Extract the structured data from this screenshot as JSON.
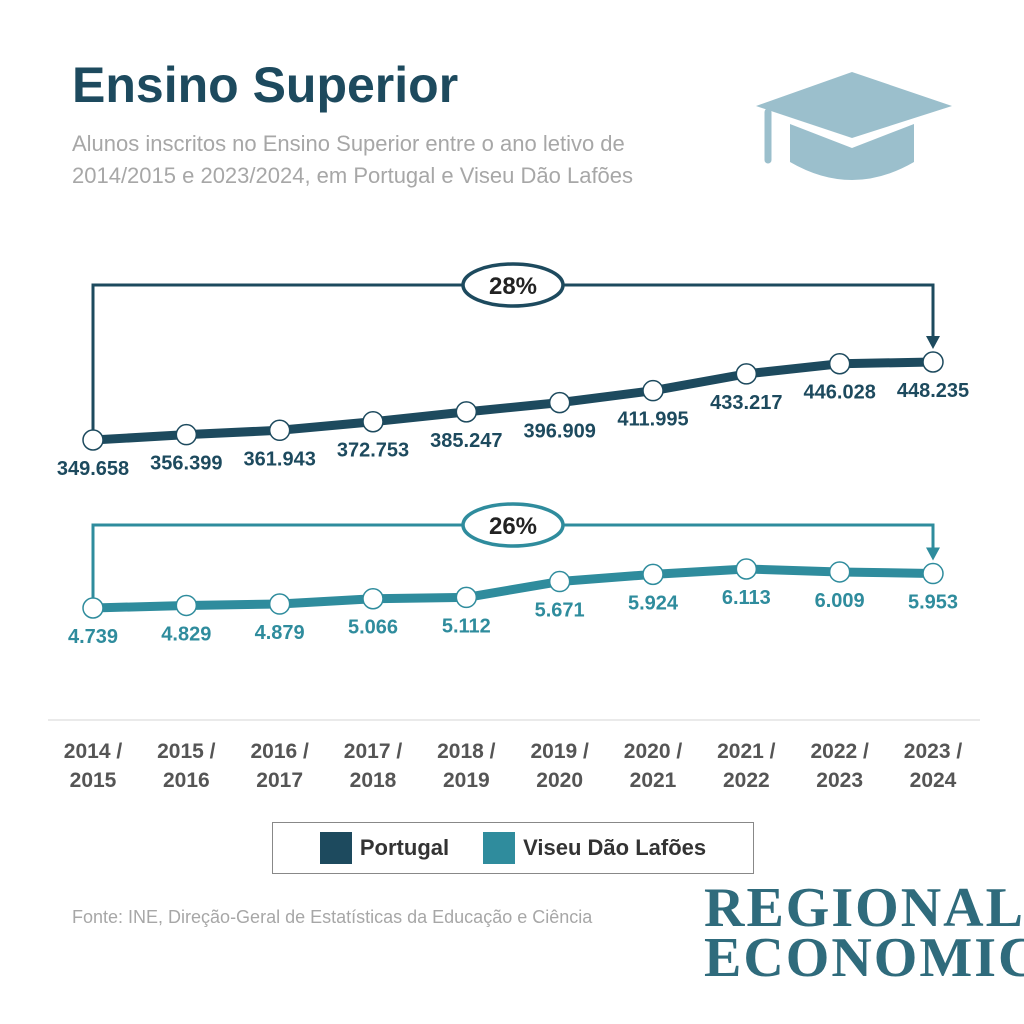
{
  "header": {
    "title": "Ensino Superior",
    "subtitle": "Alunos inscritos no Ensino Superior entre o ano letivo de 2014/2015 e 2023/2024, em Portugal e Viseu Dão Lafões"
  },
  "icon": "graduation-cap-icon",
  "colors": {
    "portugal": "#1d4a5e",
    "viseu": "#2f8c9d",
    "cap": "#9bbfcc",
    "text_dark": "#333333",
    "text_light": "#a7a7a7"
  },
  "chart_data": {
    "type": "line",
    "categories": [
      "2014 / 2015",
      "2015 / 2016",
      "2016 / 2017",
      "2017 / 2018",
      "2018 / 2019",
      "2019 / 2020",
      "2020 / 2021",
      "2021 / 2022",
      "2022 / 2023",
      "2023 / 2024"
    ],
    "series": [
      {
        "name": "Portugal",
        "values": [
          349658,
          356399,
          361943,
          372753,
          385247,
          396909,
          411995,
          433217,
          446028,
          448235
        ],
        "labels": [
          "349.658",
          "356.399",
          "361.943",
          "372.753",
          "385.247",
          "396.909",
          "411.995",
          "433.217",
          "446.028",
          "448.235"
        ],
        "change_label": "28%",
        "color": "#1d4a5e"
      },
      {
        "name": "Viseu Dão Lafões",
        "values": [
          4739,
          4829,
          4879,
          5066,
          5112,
          5671,
          5924,
          6113,
          6009,
          5953
        ],
        "labels": [
          "4.739",
          "4.829",
          "4.879",
          "5.066",
          "5.112",
          "5.671",
          "5.924",
          "6.113",
          "6.009",
          "5.953"
        ],
        "change_label": "26%",
        "color": "#2f8c9d"
      }
    ],
    "legend_position": "bottom",
    "grid": false
  },
  "legend": {
    "items": [
      {
        "label": "Portugal",
        "color": "#1d4a5e"
      },
      {
        "label": "Viseu Dão Lafões",
        "color": "#2f8c9d"
      }
    ]
  },
  "source": "Fonte: INE, Direção-Geral de Estatísticas da Educação e Ciência",
  "logo": {
    "line1": "REGIONAL",
    "line2": "ECONOMICS"
  }
}
